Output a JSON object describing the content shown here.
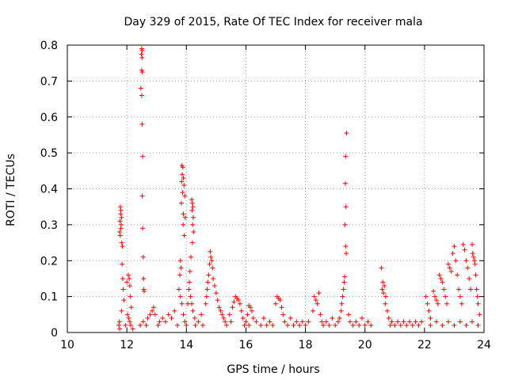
{
  "chart_data": {
    "type": "scatter",
    "title": "Day 329 of 2015, Rate Of TEC Index for receiver mala",
    "xlabel": "GPS time / hours",
    "ylabel": "ROTI / TECUs",
    "xlim": [
      10,
      24
    ],
    "ylim": [
      0,
      0.8
    ],
    "x_ticks": [
      10,
      12,
      14,
      16,
      18,
      20,
      22,
      24
    ],
    "y_ticks": [
      0,
      0.1,
      0.2,
      0.3,
      0.4,
      0.5,
      0.6,
      0.7,
      0.8
    ],
    "x_tick_labels": [
      "10",
      "12",
      "14",
      "16",
      "18",
      "20",
      "22",
      "24"
    ],
    "y_tick_labels": [
      "0",
      "0.1",
      "0.2",
      "0.3",
      "0.4",
      "0.5",
      "0.6",
      "0.7",
      "0.8"
    ],
    "grid": true,
    "marker": "+",
    "color": "#ff0000",
    "series": [
      {
        "name": "ROTI",
        "points": [
          [
            11.78,
            0.35
          ],
          [
            11.8,
            0.34
          ],
          [
            11.79,
            0.33
          ],
          [
            11.82,
            0.32
          ],
          [
            11.77,
            0.31
          ],
          [
            11.81,
            0.3
          ],
          [
            11.8,
            0.29
          ],
          [
            11.76,
            0.28
          ],
          [
            11.78,
            0.27
          ],
          [
            11.83,
            0.25
          ],
          [
            11.85,
            0.24
          ],
          [
            11.84,
            0.19
          ],
          [
            11.86,
            0.15
          ],
          [
            11.88,
            0.12
          ],
          [
            11.9,
            0.09
          ],
          [
            11.82,
            0.06
          ],
          [
            11.75,
            0.03
          ],
          [
            11.73,
            0.02
          ],
          [
            11.76,
            0.01
          ],
          [
            11.95,
            0.02
          ],
          [
            12.0,
            0.14
          ],
          [
            12.05,
            0.16
          ],
          [
            12.08,
            0.15
          ],
          [
            12.1,
            0.13
          ],
          [
            12.12,
            0.1
          ],
          [
            12.15,
            0.07
          ],
          [
            12.02,
            0.05
          ],
          [
            12.06,
            0.04
          ],
          [
            12.1,
            0.03
          ],
          [
            12.13,
            0.02
          ],
          [
            12.2,
            0.01
          ],
          [
            12.5,
            0.79
          ],
          [
            12.52,
            0.785
          ],
          [
            12.49,
            0.775
          ],
          [
            12.51,
            0.765
          ],
          [
            12.5,
            0.73
          ],
          [
            12.52,
            0.725
          ],
          [
            12.47,
            0.68
          ],
          [
            12.5,
            0.66
          ],
          [
            12.51,
            0.58
          ],
          [
            12.53,
            0.49
          ],
          [
            12.52,
            0.38
          ],
          [
            12.53,
            0.29
          ],
          [
            12.55,
            0.21
          ],
          [
            12.56,
            0.15
          ],
          [
            12.57,
            0.12
          ],
          [
            12.58,
            0.115
          ],
          [
            12.45,
            0.02
          ],
          [
            12.55,
            0.03
          ],
          [
            12.65,
            0.02
          ],
          [
            12.7,
            0.04
          ],
          [
            12.78,
            0.05
          ],
          [
            12.85,
            0.06
          ],
          [
            12.9,
            0.07
          ],
          [
            12.95,
            0.05
          ],
          [
            13.05,
            0.02
          ],
          [
            13.1,
            0.03
          ],
          [
            13.2,
            0.04
          ],
          [
            13.3,
            0.03
          ],
          [
            13.4,
            0.05
          ],
          [
            13.5,
            0.04
          ],
          [
            13.6,
            0.06
          ],
          [
            13.7,
            0.02
          ],
          [
            13.85,
            0.465
          ],
          [
            13.88,
            0.46
          ],
          [
            13.86,
            0.44
          ],
          [
            13.9,
            0.43
          ],
          [
            13.84,
            0.42
          ],
          [
            13.92,
            0.41
          ],
          [
            13.87,
            0.39
          ],
          [
            13.95,
            0.38
          ],
          [
            13.83,
            0.36
          ],
          [
            13.9,
            0.33
          ],
          [
            13.96,
            0.32
          ],
          [
            13.89,
            0.3
          ],
          [
            13.93,
            0.27
          ],
          [
            13.8,
            0.2
          ],
          [
            13.82,
            0.18
          ],
          [
            13.78,
            0.16
          ],
          [
            13.75,
            0.12
          ],
          [
            13.8,
            0.1
          ],
          [
            13.85,
            0.08
          ],
          [
            13.9,
            0.05
          ],
          [
            13.95,
            0.03
          ],
          [
            14.0,
            0.02
          ],
          [
            14.05,
            0.08
          ],
          [
            14.18,
            0.37
          ],
          [
            14.2,
            0.36
          ],
          [
            14.22,
            0.35
          ],
          [
            14.19,
            0.34
          ],
          [
            14.23,
            0.32
          ],
          [
            14.21,
            0.3
          ],
          [
            14.24,
            0.28
          ],
          [
            14.2,
            0.25
          ],
          [
            14.15,
            0.21
          ],
          [
            14.12,
            0.17
          ],
          [
            14.1,
            0.14
          ],
          [
            14.08,
            0.12
          ],
          [
            14.14,
            0.1
          ],
          [
            14.18,
            0.08
          ],
          [
            14.22,
            0.06
          ],
          [
            14.28,
            0.04
          ],
          [
            14.3,
            0.02
          ],
          [
            14.4,
            0.03
          ],
          [
            14.5,
            0.05
          ],
          [
            14.55,
            0.02
          ],
          [
            14.8,
            0.225
          ],
          [
            14.82,
            0.21
          ],
          [
            14.85,
            0.2
          ],
          [
            14.78,
            0.19
          ],
          [
            14.88,
            0.18
          ],
          [
            14.75,
            0.16
          ],
          [
            14.9,
            0.15
          ],
          [
            14.72,
            0.14
          ],
          [
            14.95,
            0.13
          ],
          [
            14.7,
            0.12
          ],
          [
            15.0,
            0.11
          ],
          [
            14.68,
            0.1
          ],
          [
            15.05,
            0.09
          ],
          [
            14.65,
            0.08
          ],
          [
            15.1,
            0.07
          ],
          [
            15.15,
            0.06
          ],
          [
            15.2,
            0.05
          ],
          [
            15.25,
            0.04
          ],
          [
            15.3,
            0.03
          ],
          [
            15.35,
            0.02
          ],
          [
            15.45,
            0.05
          ],
          [
            15.5,
            0.03
          ],
          [
            15.65,
            0.1
          ],
          [
            15.7,
            0.095
          ],
          [
            15.75,
            0.09
          ],
          [
            15.6,
            0.085
          ],
          [
            15.8,
            0.08
          ],
          [
            15.55,
            0.07
          ],
          [
            15.85,
            0.06
          ],
          [
            15.9,
            0.04
          ],
          [
            15.95,
            0.02
          ],
          [
            16.0,
            0.03
          ],
          [
            16.1,
            0.02
          ],
          [
            16.1,
            0.075
          ],
          [
            16.15,
            0.07
          ],
          [
            16.2,
            0.06
          ],
          [
            16.05,
            0.05
          ],
          [
            16.25,
            0.04
          ],
          [
            16.35,
            0.03
          ],
          [
            16.5,
            0.02
          ],
          [
            16.6,
            0.04
          ],
          [
            16.7,
            0.02
          ],
          [
            16.8,
            0.03
          ],
          [
            16.9,
            0.02
          ],
          [
            17.05,
            0.1
          ],
          [
            17.1,
            0.095
          ],
          [
            17.15,
            0.09
          ],
          [
            17.0,
            0.08
          ],
          [
            17.2,
            0.07
          ],
          [
            17.25,
            0.05
          ],
          [
            17.3,
            0.03
          ],
          [
            17.4,
            0.02
          ],
          [
            17.5,
            0.04
          ],
          [
            17.6,
            0.02
          ],
          [
            17.7,
            0.03
          ],
          [
            17.8,
            0.02
          ],
          [
            17.9,
            0.03
          ],
          [
            18.0,
            0.02
          ],
          [
            18.1,
            0.03
          ],
          [
            18.3,
            0.1
          ],
          [
            18.35,
            0.09
          ],
          [
            18.4,
            0.08
          ],
          [
            18.45,
            0.11
          ],
          [
            18.25,
            0.06
          ],
          [
            18.5,
            0.05
          ],
          [
            18.55,
            0.03
          ],
          [
            18.6,
            0.02
          ],
          [
            18.7,
            0.03
          ],
          [
            18.8,
            0.02
          ],
          [
            18.9,
            0.04
          ],
          [
            19.0,
            0.02
          ],
          [
            19.38,
            0.555
          ],
          [
            19.35,
            0.49
          ],
          [
            19.34,
            0.415
          ],
          [
            19.36,
            0.35
          ],
          [
            19.33,
            0.3
          ],
          [
            19.35,
            0.24
          ],
          [
            19.37,
            0.22
          ],
          [
            19.32,
            0.155
          ],
          [
            19.3,
            0.14
          ],
          [
            19.28,
            0.12
          ],
          [
            19.25,
            0.1
          ],
          [
            19.22,
            0.08
          ],
          [
            19.2,
            0.06
          ],
          [
            19.15,
            0.04
          ],
          [
            19.1,
            0.03
          ],
          [
            19.45,
            0.05
          ],
          [
            19.5,
            0.03
          ],
          [
            19.6,
            0.02
          ],
          [
            19.7,
            0.03
          ],
          [
            19.8,
            0.02
          ],
          [
            19.9,
            0.04
          ],
          [
            20.0,
            0.02
          ],
          [
            20.1,
            0.03
          ],
          [
            20.2,
            0.02
          ],
          [
            20.55,
            0.18
          ],
          [
            20.6,
            0.14
          ],
          [
            20.65,
            0.13
          ],
          [
            20.58,
            0.12
          ],
          [
            20.62,
            0.11
          ],
          [
            20.7,
            0.1
          ],
          [
            20.68,
            0.08
          ],
          [
            20.75,
            0.06
          ],
          [
            20.8,
            0.04
          ],
          [
            20.85,
            0.02
          ],
          [
            20.9,
            0.03
          ],
          [
            21.0,
            0.02
          ],
          [
            21.1,
            0.03
          ],
          [
            21.2,
            0.02
          ],
          [
            21.3,
            0.03
          ],
          [
            21.4,
            0.02
          ],
          [
            21.5,
            0.03
          ],
          [
            21.6,
            0.02
          ],
          [
            21.7,
            0.03
          ],
          [
            21.8,
            0.02
          ],
          [
            21.9,
            0.03
          ],
          [
            22.05,
            0.1
          ],
          [
            22.1,
            0.08
          ],
          [
            22.15,
            0.06
          ],
          [
            22.2,
            0.04
          ],
          [
            22.3,
            0.115
          ],
          [
            22.35,
            0.1
          ],
          [
            22.4,
            0.09
          ],
          [
            22.45,
            0.08
          ],
          [
            22.5,
            0.16
          ],
          [
            22.55,
            0.15
          ],
          [
            22.6,
            0.14
          ],
          [
            22.65,
            0.12
          ],
          [
            22.7,
            0.1
          ],
          [
            22.75,
            0.08
          ],
          [
            22.8,
            0.19
          ],
          [
            22.85,
            0.18
          ],
          [
            22.9,
            0.17
          ],
          [
            22.95,
            0.22
          ],
          [
            23.0,
            0.24
          ],
          [
            23.05,
            0.2
          ],
          [
            23.1,
            0.16
          ],
          [
            23.15,
            0.12
          ],
          [
            23.2,
            0.1
          ],
          [
            23.25,
            0.08
          ],
          [
            23.3,
            0.245
          ],
          [
            23.35,
            0.23
          ],
          [
            23.4,
            0.2
          ],
          [
            23.45,
            0.18
          ],
          [
            23.5,
            0.15
          ],
          [
            23.55,
            0.12
          ],
          [
            23.6,
            0.245
          ],
          [
            23.62,
            0.22
          ],
          [
            23.65,
            0.21
          ],
          [
            23.68,
            0.2
          ],
          [
            23.7,
            0.19
          ],
          [
            23.72,
            0.16
          ],
          [
            23.75,
            0.12
          ],
          [
            23.78,
            0.1
          ],
          [
            23.8,
            0.08
          ],
          [
            23.85,
            0.05
          ],
          [
            22.2,
            0.02
          ],
          [
            22.4,
            0.03
          ],
          [
            22.6,
            0.02
          ],
          [
            22.8,
            0.03
          ],
          [
            23.0,
            0.02
          ],
          [
            23.2,
            0.03
          ],
          [
            23.4,
            0.02
          ],
          [
            23.6,
            0.03
          ],
          [
            23.8,
            0.02
          ]
        ]
      }
    ]
  }
}
